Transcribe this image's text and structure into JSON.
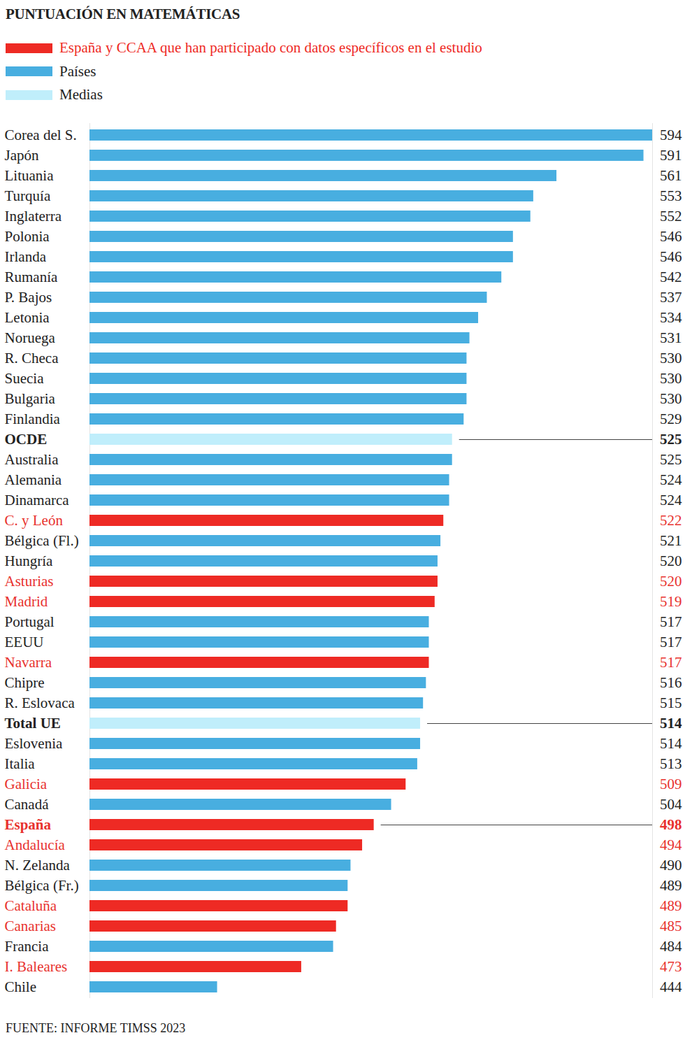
{
  "chart_data": {
    "type": "bar",
    "title": "PUNTUACIÓN EN MATEMÁTICAS",
    "caption": "FUENTE: INFORME TIMSS 2023",
    "orientation": "horizontal",
    "data_labels": true,
    "tick_labels": "y",
    "legend": "top-left",
    "grid": false,
    "xlim": [
      400,
      594
    ],
    "xticks": [],
    "reference_lines": [
      "OCDE",
      "Total UE",
      "España"
    ],
    "categories": [
      "Corea del S.",
      "Japón",
      "Lituania",
      "Turquía",
      "Inglaterra",
      "Polonia",
      "Irlanda",
      "Rumanía",
      "P. Bajos",
      "Letonia",
      "Noruega",
      "R. Checa",
      "Suecia",
      "Bulgaria",
      "Finlandia",
      "OCDE",
      "Australia",
      "Alemania",
      "Dinamarca",
      "C. y León",
      "Bélgica (Fl.)",
      "Hungría",
      "Asturias",
      "Madrid",
      "Portugal",
      "EEUU",
      "Navarra",
      "Chipre",
      "R. Eslovaca",
      "Total UE",
      "Eslovenia",
      "Italia",
      "Galicia",
      "Canadá",
      "España",
      "Andalucía",
      "N. Zelanda",
      "Bélgica (Fr.)",
      "Cataluña",
      "Canarias",
      "Francia",
      "I. Baleares",
      "Chile"
    ],
    "series": [
      {
        "name": "España y CCAA que han participado con datos específicos en el estudio",
        "color": "#ee2a24",
        "values": [
          null,
          null,
          null,
          null,
          null,
          null,
          null,
          null,
          null,
          null,
          null,
          null,
          null,
          null,
          null,
          null,
          null,
          null,
          null,
          522,
          null,
          null,
          520,
          519,
          null,
          null,
          517,
          null,
          null,
          null,
          null,
          null,
          509,
          null,
          498,
          494,
          null,
          null,
          489,
          485,
          null,
          473,
          null
        ]
      },
      {
        "name": "Países",
        "color": "#48aee0",
        "values": [
          594,
          591,
          561,
          553,
          552,
          546,
          546,
          542,
          537,
          534,
          531,
          530,
          530,
          530,
          529,
          null,
          525,
          524,
          524,
          null,
          521,
          520,
          null,
          null,
          517,
          517,
          null,
          516,
          515,
          null,
          514,
          513,
          null,
          504,
          null,
          null,
          490,
          489,
          null,
          null,
          484,
          null,
          444
        ]
      },
      {
        "name": "Medias",
        "color": "#c0eefb",
        "values": [
          null,
          null,
          null,
          null,
          null,
          null,
          null,
          null,
          null,
          null,
          null,
          null,
          null,
          null,
          null,
          525,
          null,
          null,
          null,
          null,
          null,
          null,
          null,
          null,
          null,
          null,
          null,
          null,
          null,
          514,
          null,
          null,
          null,
          null,
          null,
          null,
          null,
          null,
          null,
          null,
          null,
          null,
          null
        ]
      }
    ]
  }
}
